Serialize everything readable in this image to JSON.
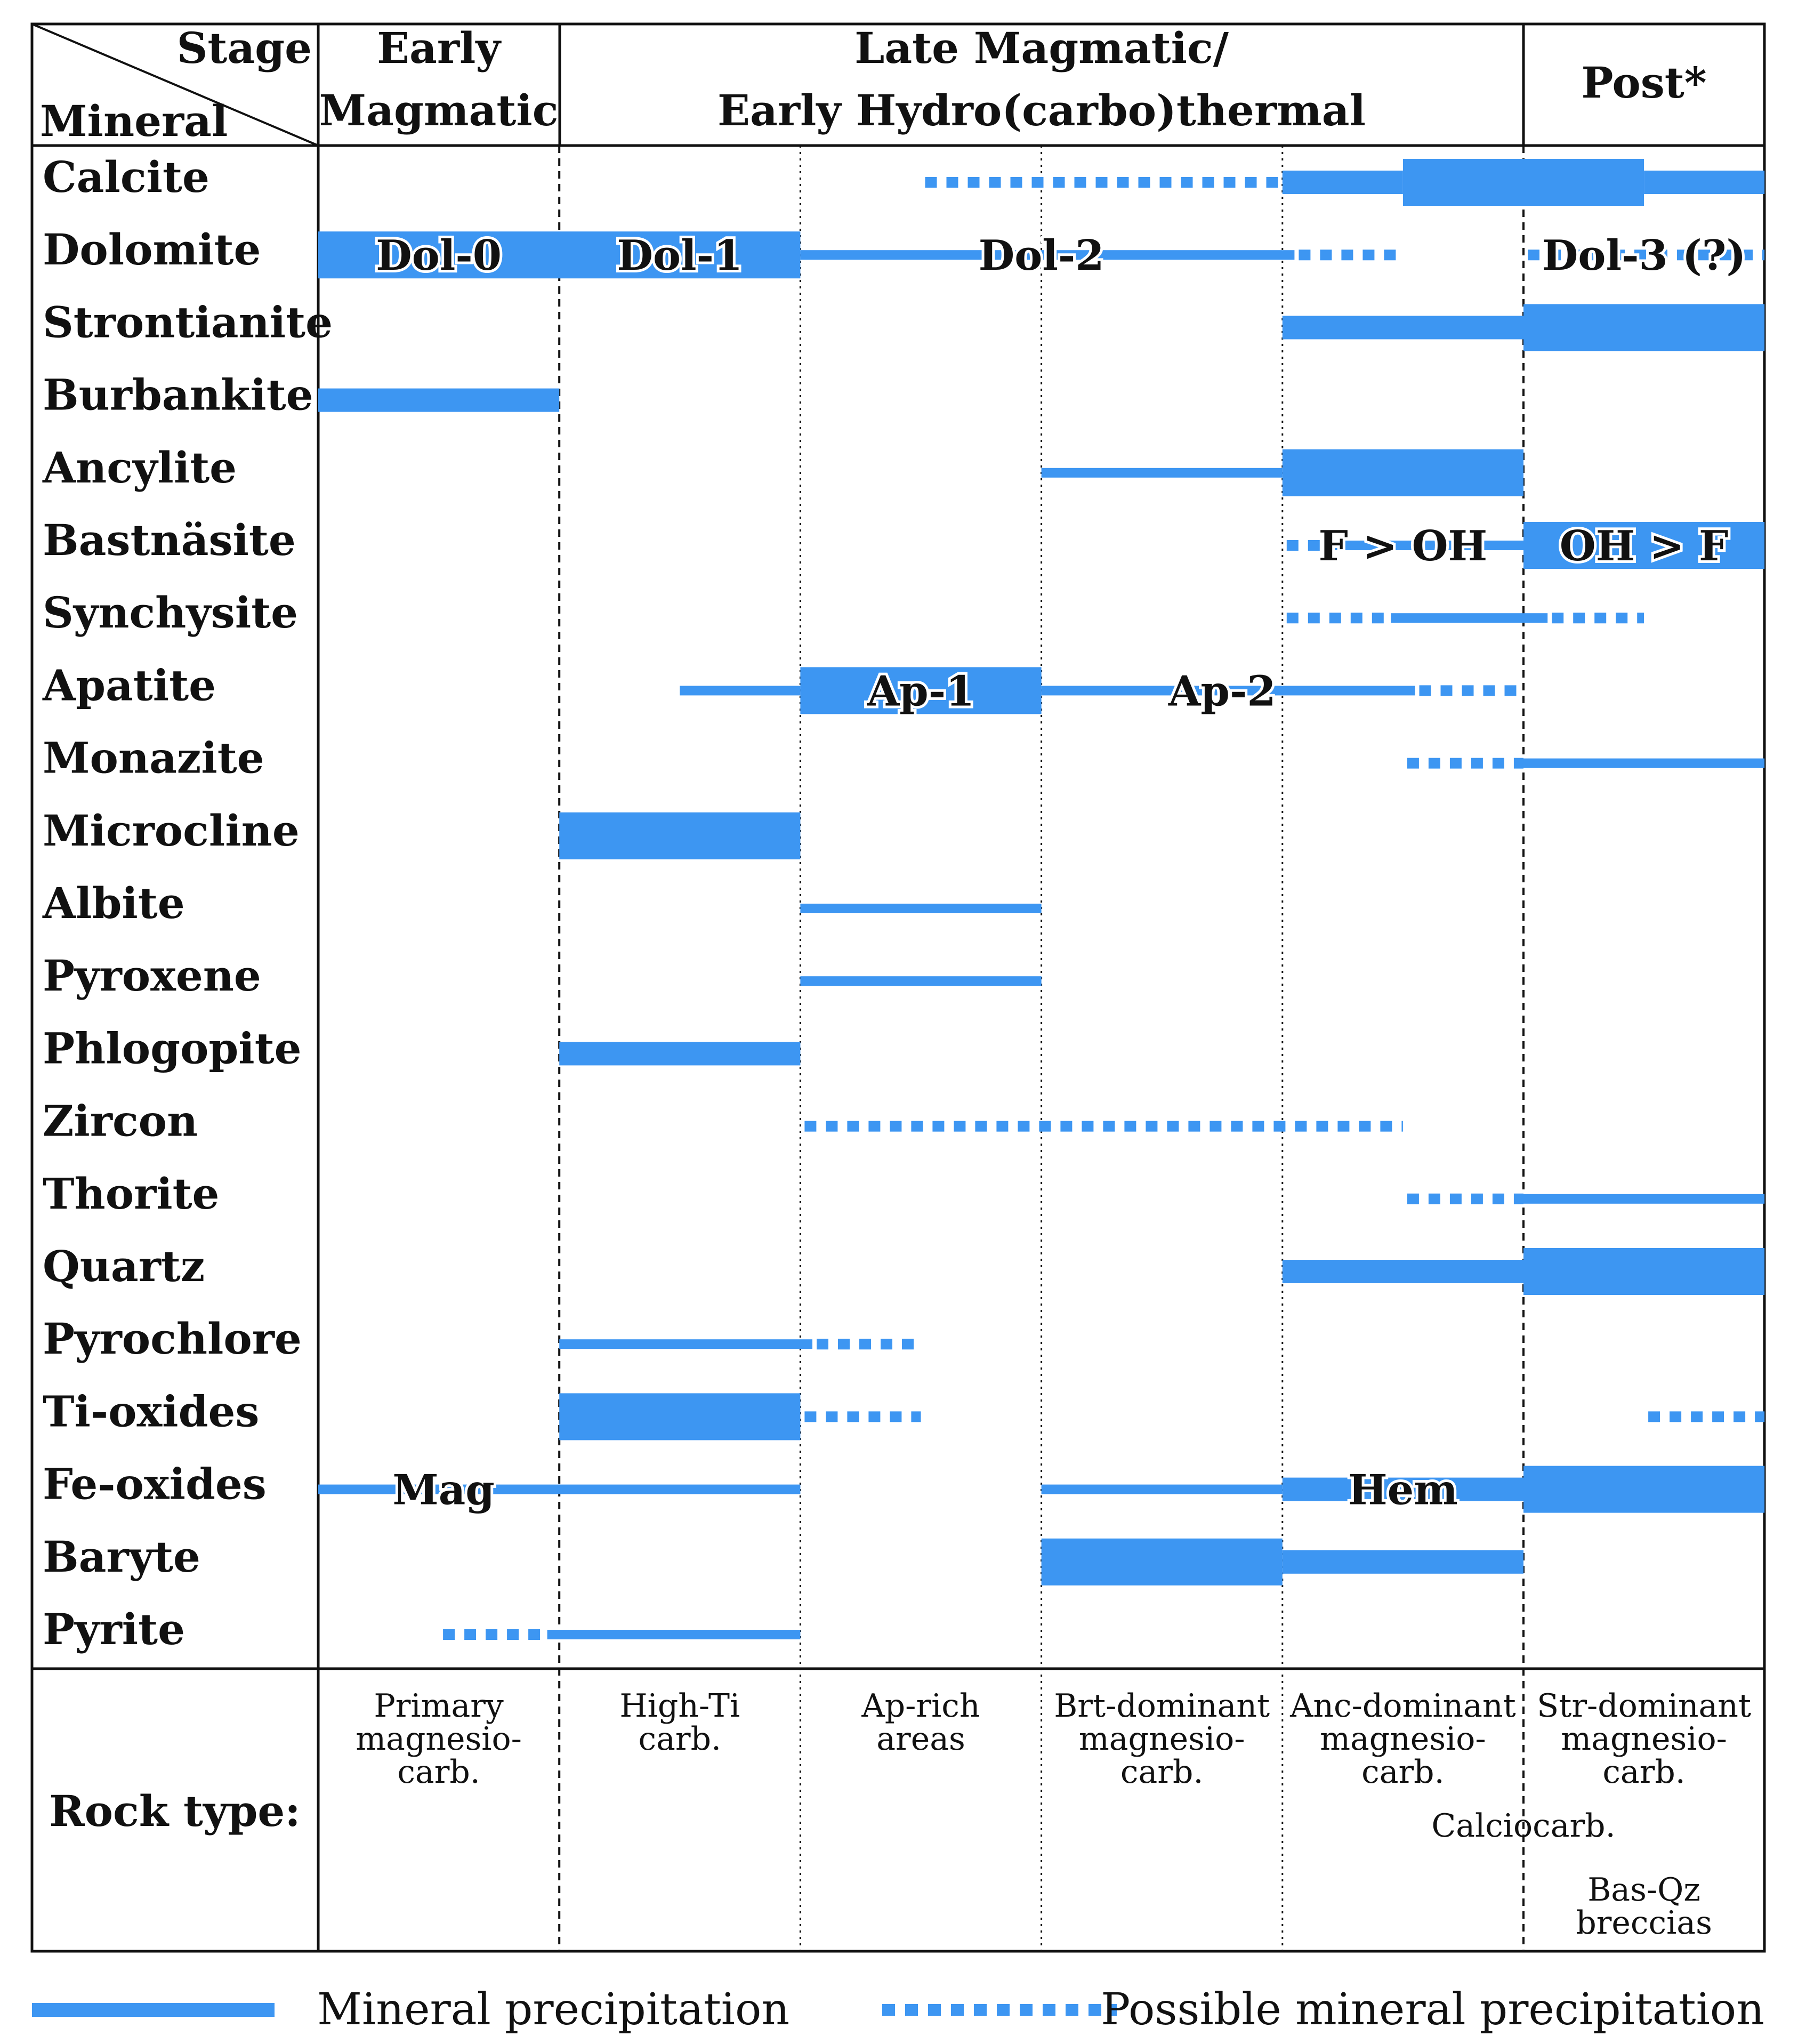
{
  "header": {
    "stage_label": "Stage",
    "mineral_label": "Mineral",
    "stages": [
      {
        "name": "Early",
        "name2": "Magmatic",
        "span": [
          0,
          1
        ]
      },
      {
        "name": "Late Magmatic/",
        "name2": "Early Hydro(carbo)thermal",
        "span": [
          1,
          5
        ]
      },
      {
        "name": "Post*",
        "name2": "",
        "span": [
          5,
          6
        ]
      }
    ]
  },
  "columns": [
    {
      "rock": [
        "Primary",
        "magnesio-",
        "carb."
      ]
    },
    {
      "rock": [
        "High-Ti",
        "carb."
      ]
    },
    {
      "rock": [
        "Ap-rich",
        "areas"
      ]
    },
    {
      "rock": [
        "Brt-dominant",
        "magnesio-",
        "carb."
      ]
    },
    {
      "rock": [
        "Anc-dominant",
        "magnesio-",
        "carb."
      ]
    },
    {
      "rock": [
        "Str-dominant",
        "magnesio-",
        "carb."
      ]
    }
  ],
  "rock_type_label": "Rock type:",
  "rock_extras": [
    {
      "text": "Calciocarb.",
      "col_center": 5.0
    },
    {
      "text": "Bas-Qz",
      "col_center": 5.5
    },
    {
      "text": "breccias",
      "col_center": 5.5
    }
  ],
  "colors": {
    "bar": "#3d96f2",
    "grid": "#111111"
  },
  "chart_data": {
    "type": "table",
    "description_units": "x positions in column units (0 = start of Early Magmatic column, 6 = end of Post column); weight: thin/medium/thick",
    "minerals": [
      {
        "name": "Calcite",
        "segments": [
          {
            "from": 2.5,
            "to": 4.0,
            "style": "dotted",
            "weight": "thin"
          },
          {
            "from": 4.0,
            "to": 4.5,
            "style": "solid",
            "weight": "medium"
          },
          {
            "from": 4.5,
            "to": 5.5,
            "style": "solid",
            "weight": "thick"
          },
          {
            "from": 5.5,
            "to": 6.0,
            "style": "solid",
            "weight": "medium"
          }
        ]
      },
      {
        "name": "Dolomite",
        "segments": [
          {
            "from": 0.0,
            "to": 2.0,
            "style": "solid",
            "weight": "thick"
          },
          {
            "from": 2.0,
            "to": 4.05,
            "style": "solid",
            "weight": "thin"
          },
          {
            "from": 4.05,
            "to": 4.5,
            "style": "dotted",
            "weight": "thin"
          },
          {
            "from": 5.0,
            "to": 6.0,
            "style": "dotted",
            "weight": "thin"
          }
        ],
        "labels": [
          {
            "text": "Dol-0",
            "at": 0.5
          },
          {
            "text": "Dol-1",
            "at": 1.5
          },
          {
            "text": "Dol-2",
            "at": 3.0
          },
          {
            "text": "Dol-3 (?)",
            "at": 5.5
          }
        ]
      },
      {
        "name": "Strontianite",
        "segments": [
          {
            "from": 4.0,
            "to": 5.0,
            "style": "solid",
            "weight": "medium"
          },
          {
            "from": 5.0,
            "to": 6.0,
            "style": "solid",
            "weight": "thick"
          }
        ]
      },
      {
        "name": "Burbankite",
        "segments": [
          {
            "from": 0.0,
            "to": 1.0,
            "style": "solid",
            "weight": "medium"
          }
        ]
      },
      {
        "name": "Ancylite",
        "segments": [
          {
            "from": 3.0,
            "to": 4.0,
            "style": "solid",
            "weight": "thin"
          },
          {
            "from": 4.0,
            "to": 5.0,
            "style": "solid",
            "weight": "thick"
          }
        ]
      },
      {
        "name": "Bastnäsite",
        "segments": [
          {
            "from": 4.0,
            "to": 4.2,
            "style": "dotted",
            "weight": "thin"
          },
          {
            "from": 4.2,
            "to": 5.0,
            "style": "solid",
            "weight": "thin"
          },
          {
            "from": 5.0,
            "to": 6.0,
            "style": "solid",
            "weight": "thick"
          }
        ],
        "labels": [
          {
            "text": "F > OH",
            "at": 4.5
          },
          {
            "text": "OH > F",
            "at": 5.5
          }
        ]
      },
      {
        "name": "Synchysite",
        "segments": [
          {
            "from": 4.0,
            "to": 4.45,
            "style": "dotted",
            "weight": "thin"
          },
          {
            "from": 4.45,
            "to": 5.1,
            "style": "solid",
            "weight": "thin"
          },
          {
            "from": 5.1,
            "to": 5.5,
            "style": "dotted",
            "weight": "thin"
          }
        ]
      },
      {
        "name": "Apatite",
        "segments": [
          {
            "from": 1.5,
            "to": 2.0,
            "style": "solid",
            "weight": "thin"
          },
          {
            "from": 2.0,
            "to": 3.0,
            "style": "solid",
            "weight": "thick"
          },
          {
            "from": 3.0,
            "to": 4.55,
            "style": "solid",
            "weight": "thin"
          },
          {
            "from": 4.55,
            "to": 5.0,
            "style": "dotted",
            "weight": "thin"
          }
        ],
        "labels": [
          {
            "text": "Ap-1",
            "at": 2.5
          },
          {
            "text": "Ap-2",
            "at": 3.75
          }
        ]
      },
      {
        "name": "Monazite",
        "segments": [
          {
            "from": 4.5,
            "to": 5.0,
            "style": "dotted",
            "weight": "thin"
          },
          {
            "from": 5.0,
            "to": 6.0,
            "style": "solid",
            "weight": "thin"
          }
        ]
      },
      {
        "name": "Microcline",
        "segments": [
          {
            "from": 1.0,
            "to": 2.0,
            "style": "solid",
            "weight": "thick"
          }
        ]
      },
      {
        "name": "Albite",
        "segments": [
          {
            "from": 2.0,
            "to": 3.0,
            "style": "solid",
            "weight": "thin"
          }
        ]
      },
      {
        "name": "Pyroxene",
        "segments": [
          {
            "from": 2.0,
            "to": 3.0,
            "style": "solid",
            "weight": "thin"
          }
        ]
      },
      {
        "name": "Phlogopite",
        "segments": [
          {
            "from": 1.0,
            "to": 2.0,
            "style": "solid",
            "weight": "medium"
          }
        ]
      },
      {
        "name": "Zircon",
        "segments": [
          {
            "from": 2.0,
            "to": 4.5,
            "style": "dotted",
            "weight": "thin"
          }
        ]
      },
      {
        "name": "Thorite",
        "segments": [
          {
            "from": 4.5,
            "to": 5.0,
            "style": "dotted",
            "weight": "thin"
          },
          {
            "from": 5.0,
            "to": 6.0,
            "style": "solid",
            "weight": "thin"
          }
        ]
      },
      {
        "name": "Quartz",
        "segments": [
          {
            "from": 4.0,
            "to": 5.0,
            "style": "solid",
            "weight": "medium"
          },
          {
            "from": 5.0,
            "to": 6.0,
            "style": "solid",
            "weight": "thick"
          }
        ]
      },
      {
        "name": "Pyrochlore",
        "segments": [
          {
            "from": 1.0,
            "to": 2.05,
            "style": "solid",
            "weight": "thin"
          },
          {
            "from": 2.05,
            "to": 2.5,
            "style": "dotted",
            "weight": "thin"
          }
        ]
      },
      {
        "name": "Ti-oxides",
        "segments": [
          {
            "from": 1.0,
            "to": 2.0,
            "style": "solid",
            "weight": "thick"
          },
          {
            "from": 2.0,
            "to": 2.5,
            "style": "dotted",
            "weight": "thin"
          },
          {
            "from": 5.5,
            "to": 6.0,
            "style": "dotted",
            "weight": "thin"
          }
        ]
      },
      {
        "name": "Fe-oxides",
        "segments": [
          {
            "from": 0.0,
            "to": 2.0,
            "style": "solid",
            "weight": "thin"
          },
          {
            "from": 3.0,
            "to": 4.0,
            "style": "solid",
            "weight": "thin"
          },
          {
            "from": 4.0,
            "to": 5.0,
            "style": "solid",
            "weight": "medium"
          },
          {
            "from": 5.0,
            "to": 6.0,
            "style": "solid",
            "weight": "thick"
          }
        ],
        "labels": [
          {
            "text": "Mag",
            "at": 0.52
          },
          {
            "text": "Hem",
            "at": 4.5
          }
        ]
      },
      {
        "name": "Baryte",
        "segments": [
          {
            "from": 3.0,
            "to": 4.0,
            "style": "solid",
            "weight": "thick"
          },
          {
            "from": 4.0,
            "to": 5.0,
            "style": "solid",
            "weight": "medium"
          }
        ]
      },
      {
        "name": "Pyrite",
        "segments": [
          {
            "from": 0.5,
            "to": 0.95,
            "style": "dotted",
            "weight": "thin"
          },
          {
            "from": 0.95,
            "to": 2.0,
            "style": "solid",
            "weight": "thin"
          }
        ]
      }
    ]
  },
  "legend": {
    "solid_label": "Mineral precipitation",
    "dotted_label": "Possible mineral precipitation"
  }
}
